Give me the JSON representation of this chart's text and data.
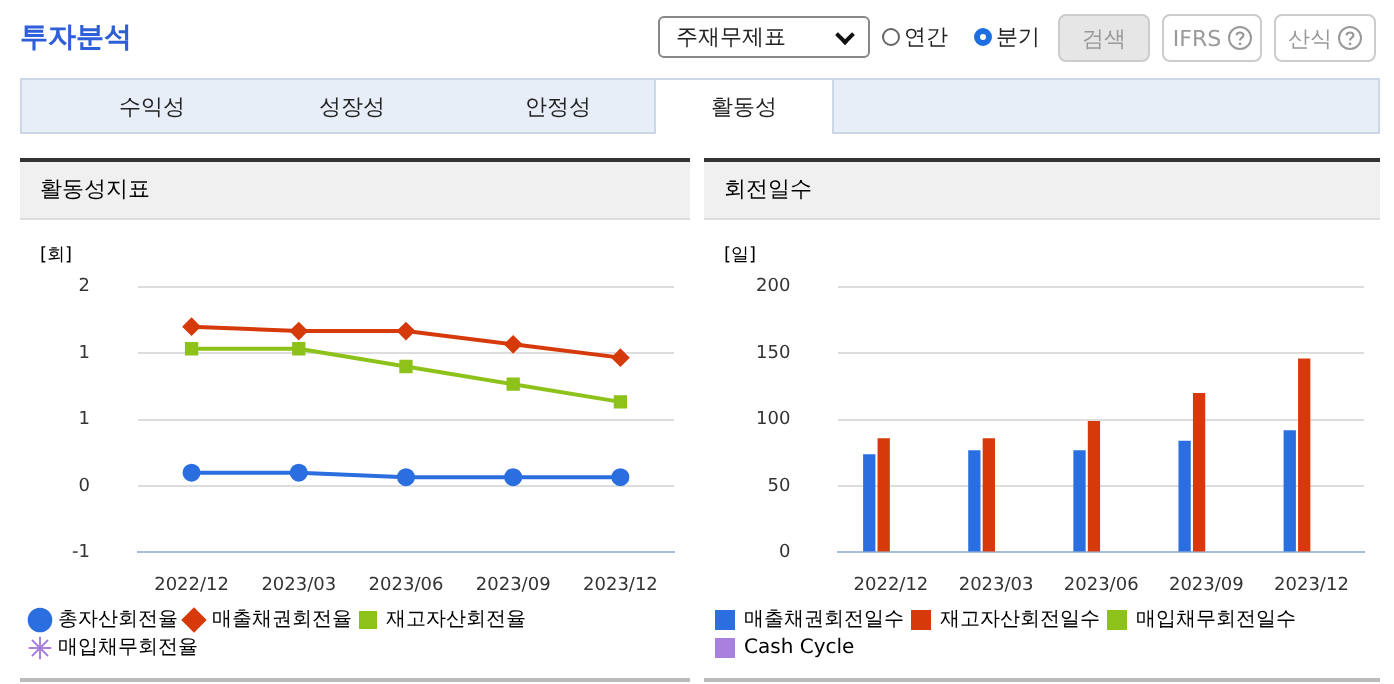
{
  "chart_data": [
    {
      "type": "other",
      "title": "투자분석",
      "annotations": [
        "주재무제표",
        "연간",
        "분기",
        "검색",
        "IFRS",
        "산식",
        "수익성",
        "성장성",
        "안정성",
        "활동성"
      ]
    },
    {
      "type": "line",
      "title": "활동성지표",
      "ylabel": "[회]",
      "categories": [
        "2022/12",
        "2023/03",
        "2023/06",
        "2023/09",
        "2023/12"
      ],
      "series": [
        {
          "name": "총자산회전율",
          "color": "#2a6ee0",
          "marker": "circle",
          "values": [
            -0.1,
            -0.1,
            -0.15,
            -0.15,
            -0.15
          ]
        },
        {
          "name": "매출채권회전율",
          "color": "#d63a0a",
          "marker": "diamond",
          "values": [
            1.55,
            1.5,
            1.5,
            1.35,
            1.2
          ]
        },
        {
          "name": "재고자산회전율",
          "color": "#8cc21a",
          "marker": "square",
          "values": [
            1.3,
            1.3,
            1.1,
            0.9,
            0.7
          ]
        },
        {
          "name": "매입채무회전율",
          "color": "#a880de",
          "marker": "star",
          "values": [
            null,
            null,
            null,
            null,
            null
          ]
        }
      ],
      "ylim": [
        -1,
        2
      ],
      "yticks": [
        -1,
        {
          "value": -0.25,
          "label": "0"
        },
        {
          "value": 0.5,
          "label": "1"
        },
        {
          "value": 1.25,
          "label": "1"
        },
        2
      ],
      "grid": "y",
      "legend": "bottom"
    },
    {
      "type": "bar",
      "title": "회전일수",
      "ylabel": "[일]",
      "categories": [
        "2022/12",
        "2023/03",
        "2023/06",
        "2023/09",
        "2023/12"
      ],
      "series": [
        {
          "name": "매출채권회전일수",
          "color": "#2a6ee0",
          "values": [
            74,
            77,
            77,
            84,
            92
          ]
        },
        {
          "name": "재고자산회전일수",
          "color": "#d63a0a",
          "values": [
            86,
            86,
            99,
            120,
            146
          ]
        },
        {
          "name": "매입채무회전일수",
          "color": "#8cc21a",
          "values": [
            null,
            null,
            null,
            null,
            null
          ]
        },
        {
          "name": "Cash Cycle",
          "color": "#a880de",
          "values": [
            null,
            null,
            null,
            null,
            null
          ]
        }
      ],
      "ylim": [
        0,
        200
      ],
      "yticks": [
        0,
        50,
        100,
        150,
        200
      ],
      "grid": "y",
      "legend": "bottom"
    }
  ]
}
